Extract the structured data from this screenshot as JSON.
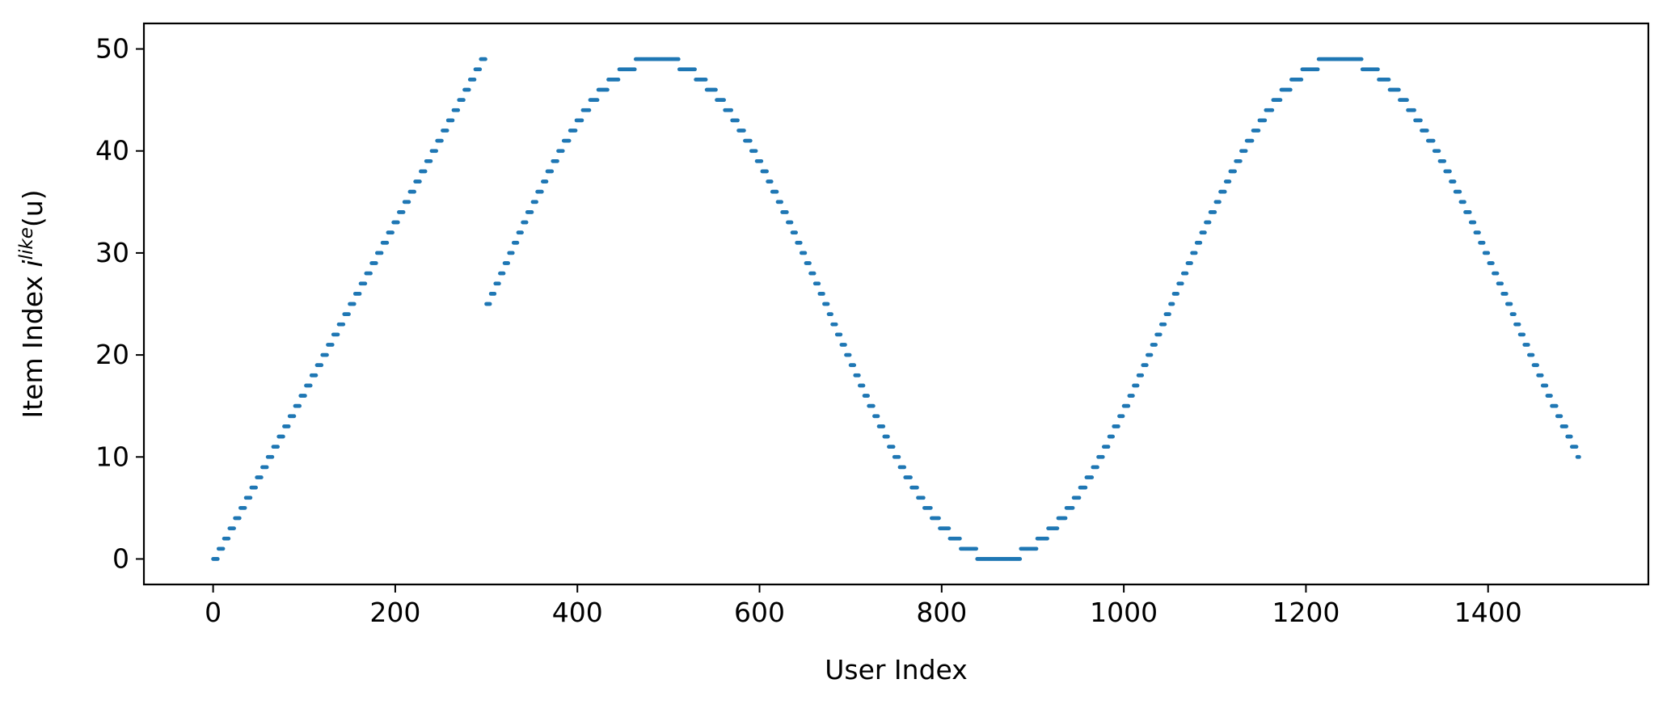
{
  "chart_data": {
    "type": "scatter",
    "title": "",
    "xlabel": "User Index",
    "ylabel": {
      "prefix": "Item Index ",
      "symbol": "i",
      "superscript": "like",
      "suffix": "(u)"
    },
    "xlim": [
      -76,
      1576
    ],
    "ylim": [
      -2.5,
      52.5
    ],
    "xticks": [
      0,
      200,
      400,
      600,
      800,
      1000,
      1200,
      1400
    ],
    "xtick_labels": [
      "0",
      "200",
      "400",
      "600",
      "800",
      "1000",
      "1200",
      "1400"
    ],
    "yticks": [
      0,
      10,
      20,
      30,
      40,
      50
    ],
    "ytick_labels": [
      "0",
      "10",
      "20",
      "30",
      "40",
      "50"
    ],
    "grid": false,
    "legend": "none",
    "marker_color": "#1f77b4",
    "series": [
      {
        "segment": "linear",
        "x_range": [
          0,
          300
        ],
        "rule": "y = floor(x / 6)",
        "y_range": [
          0,
          49
        ]
      },
      {
        "segment": "sinusoidal",
        "x_range": [
          300,
          1500
        ],
        "rule": "y = round(24.5 + 24.5 * sin(2*pi*(x - 300)/750))",
        "y_start": 25,
        "y_max": 49,
        "y_min": 0,
        "y_end": 10
      }
    ]
  }
}
